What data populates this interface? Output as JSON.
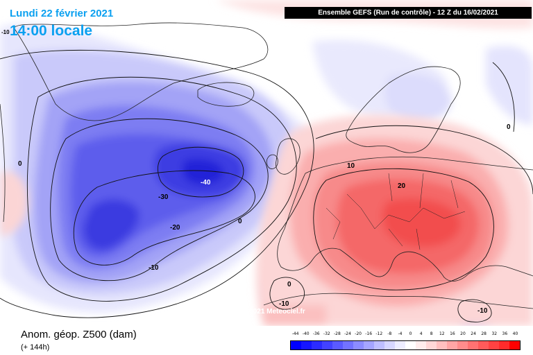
{
  "header": {
    "date": "Lundi 22 février 2021",
    "time": "14:00 locale",
    "run": "Ensemble GEFS  (Run de contrôle)  -  12 Z du 16/02/2021"
  },
  "map": {
    "copyright": "Copyright © 2021 Meteociel.fr",
    "contour_labels": [
      "-40",
      "-30",
      "-20",
      "-10",
      "0",
      "10",
      "20",
      "-10",
      "-10",
      "0",
      "0",
      "0",
      "-10"
    ],
    "colors": {
      "neg_strong": "#3333dd",
      "neg_mid": "#6f6ff0",
      "neg_light": "#c8c8fa",
      "pos_strong": "#f25555",
      "pos_mid": "#fa9d9d",
      "pos_light": "#fde0e0"
    }
  },
  "footer": {
    "variable": "Anom. géop. Z500 (dam)",
    "lead": "(+ 144h)"
  },
  "colorbar": {
    "labels": [
      "-44",
      "-40",
      "-36",
      "-32",
      "-28",
      "-24",
      "-20",
      "-16",
      "-12",
      "-8",
      "-4",
      "0",
      "4",
      "8",
      "12",
      "16",
      "20",
      "24",
      "28",
      "32",
      "36",
      "40"
    ],
    "colors": [
      "#0000ff",
      "#1515ff",
      "#2b2bff",
      "#4242ff",
      "#5a5aff",
      "#7272ff",
      "#8c8cff",
      "#a5a5ff",
      "#bfbfff",
      "#d7d7ff",
      "#ededff",
      "#ffffff",
      "#ffeded",
      "#ffd7d7",
      "#ffbfbf",
      "#ffa5a5",
      "#ff8c8c",
      "#ff7272",
      "#ff5a5a",
      "#ff4242",
      "#ff2b2b",
      "#ff0000"
    ]
  }
}
